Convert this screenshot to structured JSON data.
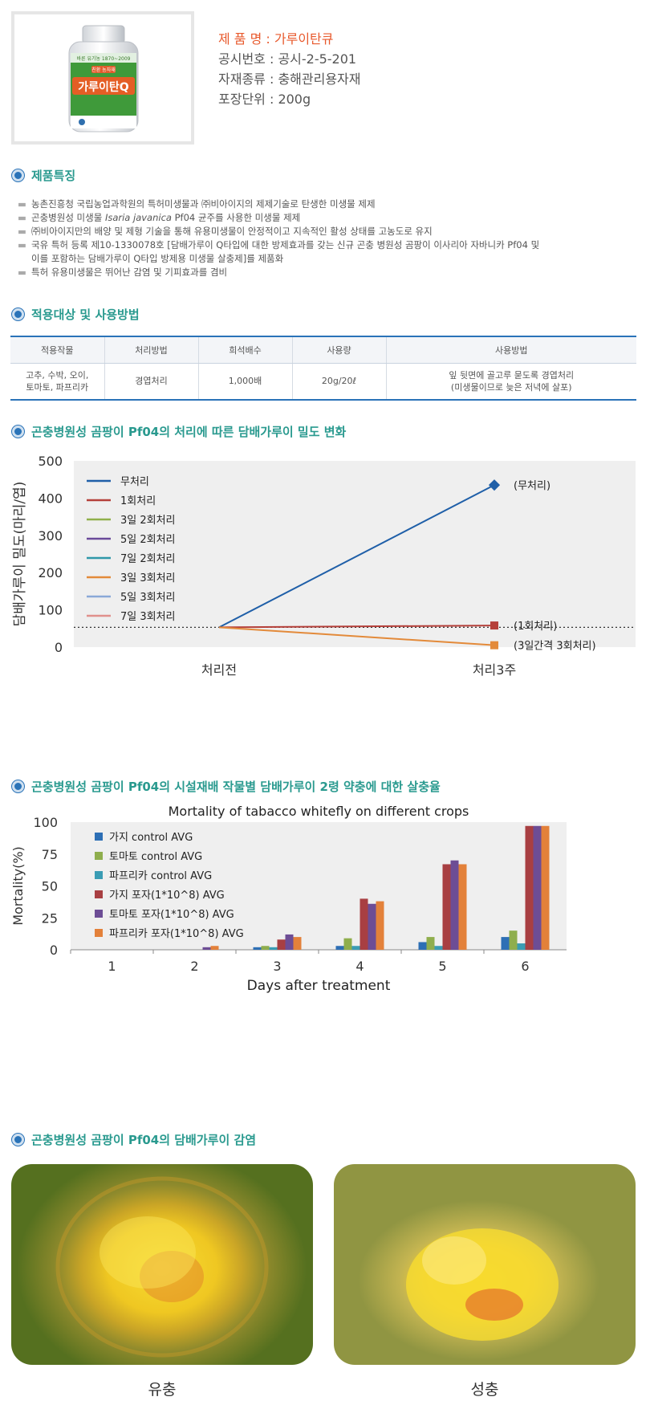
{
  "product": {
    "name_row": "제 품 명 : 가루이탄큐",
    "reg_row": "공시번호 : 공시-2-5-201",
    "type_row": "자재종류 : 충해관리용자재",
    "pack_row": "포장단위 : 200g",
    "bottle_label": "가루이탄Q",
    "bottle_tag": "친환 농자재",
    "bottle_top": "바른 유기농 1870~2009"
  },
  "sections": {
    "features": "제품특징",
    "usage": "적용대상 및 사용방법",
    "chart1": "곤충병원성 곰팡이 Pf04의 처리에 따른 담배가루이 밀도 변화",
    "chart2": "곤충병원성 곰팡이 Pf04의 시설재배 작물별 담배가루이 2령 약충에 대한 살충율",
    "infection": "곤충병원성 곰팡이 Pf04의 담배가루이 감염"
  },
  "features": [
    {
      "pre": "농촌진흥청 국립농업과학원의 특허미생물과 ㈜비아이지의 제제기술로 탄생한 미생물 제제"
    },
    {
      "pre": "곤충병원성 미생물 ",
      "em": "Isaria javanica",
      "post": " Pf04 균주를 사용한 미생물 제제"
    },
    {
      "pre": "㈜비아이지만의 배양 및 제형 기술을 통해 유용미생물이 안정적이고 지속적인 활성 상태를 고농도로 유지"
    },
    {
      "pre": "국유 특허 등록 제10-1330078호 [담배가루이 Q타입에 대한 방제효과를 갖는 신규 곤충 병원성 곰팡이 이사리아 자바니카 Pf04 및",
      "cont": "이를 포함하는 담배가루이 Q타입 방제용 미생물 살충제]를 제품화"
    },
    {
      "pre": "특허 유용미생물은 뛰어난 감염 및 기피효과를 겸비"
    }
  ],
  "feature_mark": "▬",
  "usage_table": {
    "headers": [
      "적용작물",
      "처리방법",
      "희석배수",
      "사용량",
      "사용방법"
    ],
    "row": {
      "crop_l1": "고추, 수박, 오이,",
      "crop_l2": "토마토, 파프리카",
      "method": "경엽처리",
      "dilution": "1,000배",
      "amount": "20g/20ℓ",
      "usage_l1": "잎 뒷면에 골고루 묻도록 경엽처리",
      "usage_l2": "(미생물이므로 늦은 저녁에 살포)"
    }
  },
  "chart_data": [
    {
      "type": "line",
      "title": "",
      "xlabel": "",
      "ylabel": "담배가루이 밀도(마리/엽)",
      "ylim": [
        0,
        500
      ],
      "yticks": [
        "0",
        "100",
        "200",
        "300",
        "400",
        "500"
      ],
      "categories": [
        "처리전",
        "처리3주"
      ],
      "baseline": 53,
      "grid": false,
      "legend_position": "top-left",
      "series": [
        {
          "name": "무처리",
          "color": "#1f5fa8",
          "values": [
            53,
            435
          ],
          "marker": "diamond",
          "label": "(무처리)"
        },
        {
          "name": "1회처리",
          "color": "#b5403a",
          "values": [
            53,
            58
          ],
          "marker": "square",
          "label": "(1회처리)"
        },
        {
          "name": "3일 2회처리",
          "color": "#8fb04a",
          "values": [
            null,
            null
          ]
        },
        {
          "name": "5일 2회처리",
          "color": "#6a4a9a",
          "values": [
            null,
            null
          ]
        },
        {
          "name": "7일 2회처리",
          "color": "#2f98a9",
          "values": [
            null,
            null
          ]
        },
        {
          "name": "3일 3회처리",
          "color": "#e38a3a",
          "values": [
            53,
            5
          ],
          "marker": "square",
          "label": "(3일간격 3회처리)"
        },
        {
          "name": "5일 3회처리",
          "color": "#8aa8d8",
          "values": [
            null,
            null
          ]
        },
        {
          "name": "7일 3회처리",
          "color": "#e0908c",
          "values": [
            null,
            null
          ]
        }
      ]
    },
    {
      "type": "bar",
      "title": "Mortality of tabacco whitefly on different crops",
      "xlabel": "Days after treatment",
      "ylabel": "Mortality(%)",
      "ylim": [
        0,
        100
      ],
      "yticks": [
        "0",
        "25",
        "50",
        "75",
        "100"
      ],
      "categories": [
        "1",
        "2",
        "3",
        "4",
        "5",
        "6"
      ],
      "grid": false,
      "legend_position": "top-left",
      "series": [
        {
          "name": "가지 control AVG",
          "color": "#2d6fb5",
          "values": [
            0,
            0,
            2,
            3,
            6,
            10
          ]
        },
        {
          "name": "토마토 control AVG",
          "color": "#8fae4d",
          "values": [
            0,
            0,
            3,
            9,
            10,
            15
          ]
        },
        {
          "name": "파프리카 control AVG",
          "color": "#3a9cb4",
          "values": [
            0,
            0,
            2,
            3,
            3,
            5
          ]
        },
        {
          "name": "가지 포자(1*10^8) AVG",
          "color": "#a83f42",
          "values": [
            0,
            0,
            8,
            40,
            67,
            97
          ]
        },
        {
          "name": "토마토 포자(1*10^8) AVG",
          "color": "#6d4d95",
          "values": [
            0,
            2,
            12,
            36,
            70,
            97
          ]
        },
        {
          "name": "파프리카 포자(1*10^8) AVG",
          "color": "#e3813a",
          "values": [
            0,
            3,
            10,
            38,
            67,
            97
          ]
        }
      ]
    }
  ],
  "photos": {
    "larva": "유충",
    "adult": "성충"
  }
}
